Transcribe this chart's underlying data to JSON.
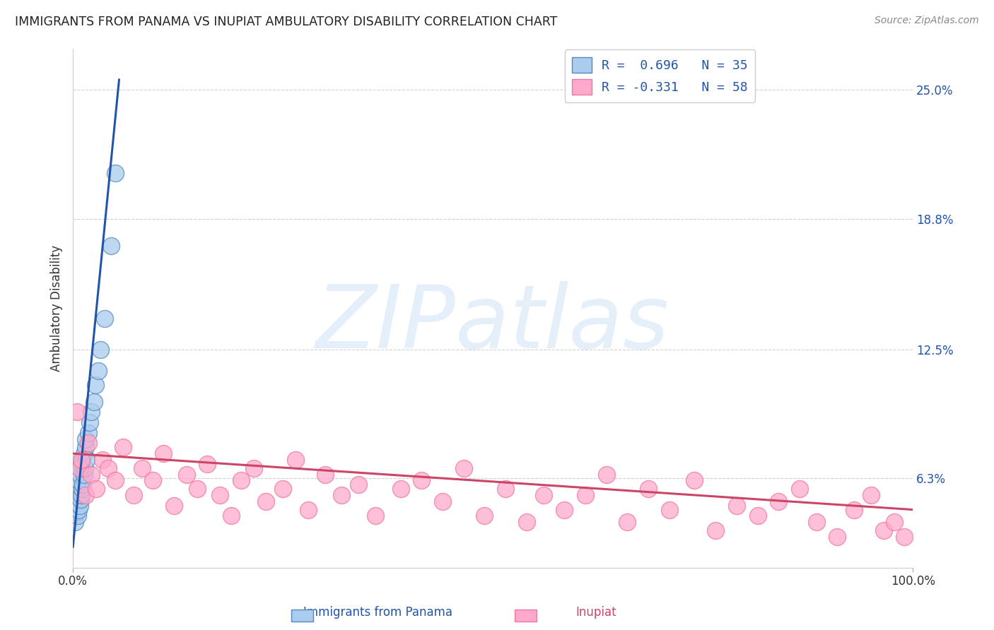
{
  "title": "IMMIGRANTS FROM PANAMA VS INUPIAT AMBULATORY DISABILITY CORRELATION CHART",
  "source": "Source: ZipAtlas.com",
  "xlabel_bottom_blue": "Immigrants from Panama",
  "xlabel_bottom_pink": "Inupiat",
  "ylabel": "Ambulatory Disability",
  "x_tick_labels": [
    "0.0%",
    "100.0%"
  ],
  "y_tick_positions": [
    0.063,
    0.125,
    0.188,
    0.25
  ],
  "y_tick_labels": [
    "6.3%",
    "12.5%",
    "18.8%",
    "25.0%"
  ],
  "blue_line_color": "#2255AA",
  "blue_marker_face": "#AACCEE",
  "blue_marker_edge": "#5588BB",
  "pink_line_color": "#CC4466",
  "pink_marker_face": "#FFAACC",
  "pink_marker_edge": "#EE7799",
  "legend_text1": "R =  0.696   N = 35",
  "legend_text2": "R = -0.331   N = 58",
  "watermark": "ZIPatlas",
  "watermark_color": "#AACCEE",
  "blue_scatter_x": [
    0.002,
    0.003,
    0.004,
    0.004,
    0.005,
    0.005,
    0.006,
    0.006,
    0.007,
    0.007,
    0.008,
    0.008,
    0.009,
    0.009,
    0.01,
    0.01,
    0.011,
    0.011,
    0.012,
    0.013,
    0.013,
    0.014,
    0.015,
    0.015,
    0.016,
    0.018,
    0.02,
    0.022,
    0.025,
    0.027,
    0.03,
    0.033,
    0.038,
    0.045,
    0.05
  ],
  "blue_scatter_y": [
    0.042,
    0.05,
    0.047,
    0.052,
    0.055,
    0.058,
    0.045,
    0.06,
    0.048,
    0.062,
    0.05,
    0.065,
    0.053,
    0.068,
    0.055,
    0.07,
    0.058,
    0.072,
    0.06,
    0.065,
    0.075,
    0.068,
    0.078,
    0.082,
    0.072,
    0.085,
    0.09,
    0.095,
    0.1,
    0.108,
    0.115,
    0.125,
    0.14,
    0.175,
    0.21
  ],
  "pink_scatter_x": [
    0.005,
    0.008,
    0.01,
    0.015,
    0.018,
    0.022,
    0.028,
    0.035,
    0.042,
    0.05,
    0.06,
    0.072,
    0.082,
    0.095,
    0.108,
    0.12,
    0.135,
    0.148,
    0.16,
    0.175,
    0.188,
    0.2,
    0.215,
    0.23,
    0.25,
    0.265,
    0.28,
    0.3,
    0.32,
    0.34,
    0.36,
    0.39,
    0.415,
    0.44,
    0.465,
    0.49,
    0.515,
    0.54,
    0.56,
    0.585,
    0.61,
    0.635,
    0.66,
    0.685,
    0.71,
    0.74,
    0.765,
    0.79,
    0.815,
    0.84,
    0.865,
    0.885,
    0.91,
    0.93,
    0.95,
    0.965,
    0.978,
    0.99
  ],
  "pink_scatter_y": [
    0.095,
    0.068,
    0.072,
    0.055,
    0.08,
    0.065,
    0.058,
    0.072,
    0.068,
    0.062,
    0.078,
    0.055,
    0.068,
    0.062,
    0.075,
    0.05,
    0.065,
    0.058,
    0.07,
    0.055,
    0.045,
    0.062,
    0.068,
    0.052,
    0.058,
    0.072,
    0.048,
    0.065,
    0.055,
    0.06,
    0.045,
    0.058,
    0.062,
    0.052,
    0.068,
    0.045,
    0.058,
    0.042,
    0.055,
    0.048,
    0.055,
    0.065,
    0.042,
    0.058,
    0.048,
    0.062,
    0.038,
    0.05,
    0.045,
    0.052,
    0.058,
    0.042,
    0.035,
    0.048,
    0.055,
    0.038,
    0.042,
    0.035
  ],
  "blue_trendline_x": [
    0.0,
    0.055
  ],
  "blue_trendline_y": [
    0.03,
    0.255
  ],
  "pink_trendline_x": [
    0.0,
    1.0
  ],
  "pink_trendline_y": [
    0.075,
    0.048
  ],
  "xlim": [
    0.0,
    1.0
  ],
  "ylim": [
    0.02,
    0.27
  ],
  "background_color": "#FFFFFF",
  "grid_color": "#BBBBBB"
}
